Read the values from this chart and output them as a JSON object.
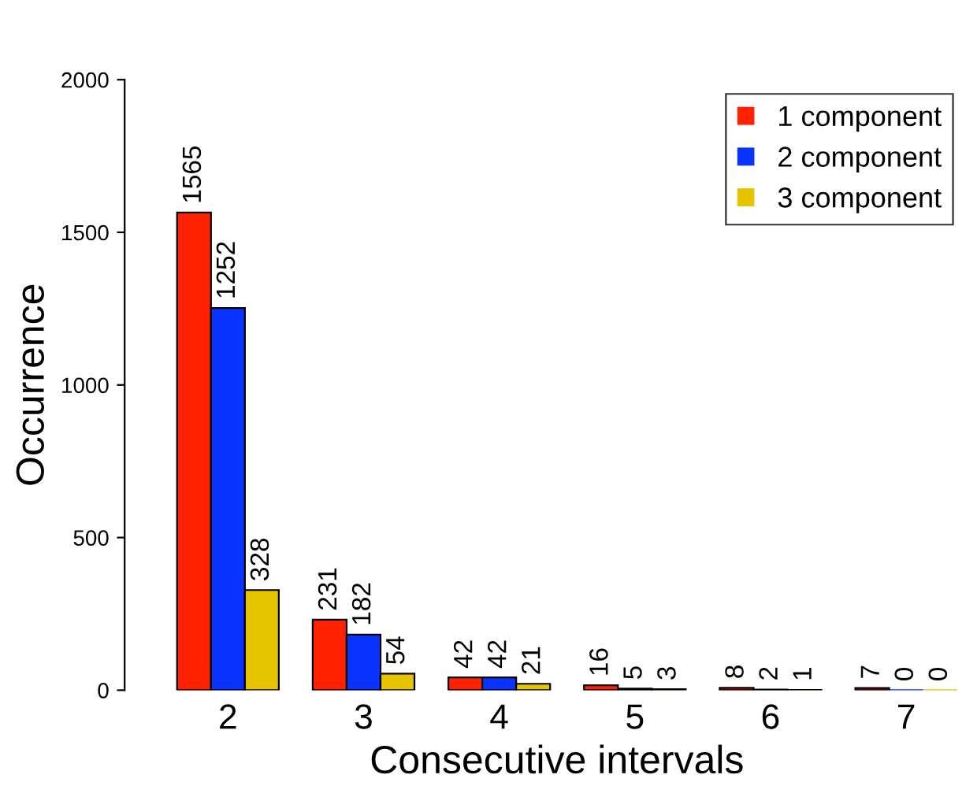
{
  "chart_data": {
    "type": "bar",
    "xlabel": "Consecutive intervals",
    "ylabel": "Occurrence",
    "categories": [
      "2",
      "3",
      "4",
      "5",
      "6",
      "7"
    ],
    "series": [
      {
        "name": "1 component",
        "color": "#ff2200",
        "values": [
          1565,
          231,
          42,
          16,
          8,
          7
        ]
      },
      {
        "name": "2 component",
        "color": "#0a33ff",
        "values": [
          1252,
          182,
          42,
          5,
          2,
          0
        ]
      },
      {
        "name": "3 component",
        "color": "#e8c300",
        "values": [
          328,
          54,
          21,
          3,
          1,
          0
        ]
      }
    ],
    "ylim": [
      0,
      2000
    ],
    "yticks": [
      0,
      500,
      1000,
      1500,
      2000
    ],
    "data_labels": true,
    "legend": "top right",
    "grid": false
  }
}
